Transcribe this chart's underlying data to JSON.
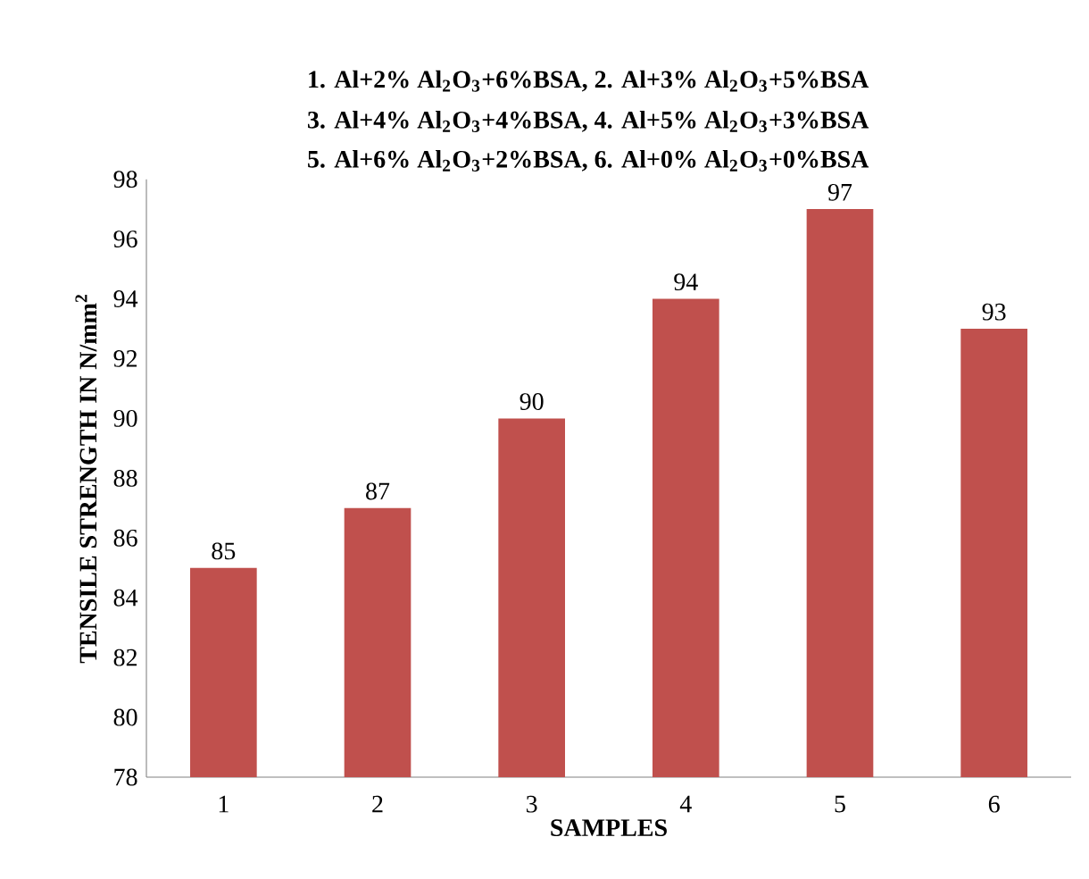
{
  "chart_data": {
    "type": "bar",
    "title": "1. Al+2% Al$_{2}$O$_{3}$+6%BSA,  2. Al+3% Al$_{2}$O$_{3}$+5%BSA",
    "subtitle": "3. Al+4% Al$_{2}$O$_{3}$+4%BSA, 4. Al+5% Al$_{2}$O$_{3}$+3%BSA",
    "annotations": [
      "5. Al+6% Al$_{2}$O$_{3}$+2%BSA, 6. Al+0% Al$_{2}$O$_{3}$+0%BSA"
    ],
    "xlabel": "SAMPLES",
    "ylabel": "TENSILE STRENGTH IN N/mm$^{2}$",
    "categories": [
      "1",
      "2",
      "3",
      "4",
      "5",
      "6"
    ],
    "values": [
      85,
      87,
      90,
      94,
      97,
      93
    ],
    "color": "#c0504d",
    "ylim": [
      78,
      98
    ],
    "yticks": [
      78,
      80,
      82,
      84,
      86,
      88,
      90,
      92,
      94,
      96,
      98
    ],
    "data_labels": true,
    "grid": false
  }
}
